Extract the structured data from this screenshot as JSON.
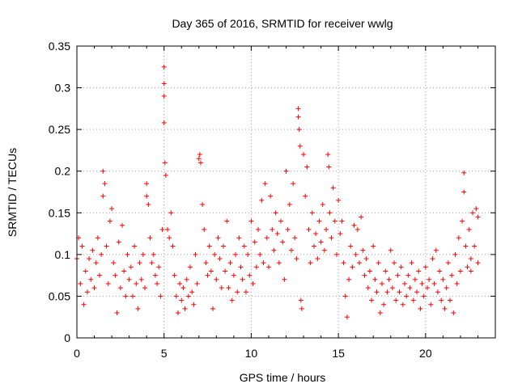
{
  "chart_data": {
    "type": "scatter",
    "title": "Day 365 of 2016, SRMTID for receiver wwlg",
    "xlabel": "GPS time / hours",
    "ylabel": "SRMTID / TECUs",
    "xlim": [
      0,
      24
    ],
    "ylim": [
      0,
      0.35
    ],
    "x_ticks": [
      0,
      5,
      10,
      15,
      20
    ],
    "y_ticks": [
      0,
      0.05,
      0.1,
      0.15,
      0.2,
      0.25,
      0.3,
      0.35
    ],
    "x_tick_labels": [
      "0",
      "5",
      "10",
      "15",
      "20"
    ],
    "y_tick_labels": [
      "0",
      "0.05",
      "0.1",
      "0.15",
      "0.2",
      "0.25",
      "0.3",
      "0.35"
    ],
    "grid": true,
    "marker": "+",
    "colors": {
      "marker": "#ff0000",
      "grid": "#a0a0a0",
      "axis": "#000000"
    },
    "series": [
      {
        "name": "SRMTID",
        "points": [
          [
            0.0,
            0.095
          ],
          [
            0.1,
            0.12
          ],
          [
            0.2,
            0.065
          ],
          [
            0.3,
            0.11
          ],
          [
            0.4,
            0.04
          ],
          [
            0.5,
            0.08
          ],
          [
            0.6,
            0.055
          ],
          [
            0.7,
            0.095
          ],
          [
            0.8,
            0.07
          ],
          [
            0.9,
            0.105
          ],
          [
            1.0,
            0.06
          ],
          [
            1.1,
            0.09
          ],
          [
            1.2,
            0.12
          ],
          [
            1.3,
            0.075
          ],
          [
            1.4,
            0.1
          ],
          [
            1.5,
            0.2
          ],
          [
            1.5,
            0.17
          ],
          [
            1.6,
            0.185
          ],
          [
            1.7,
            0.11
          ],
          [
            1.8,
            0.065
          ],
          [
            1.9,
            0.14
          ],
          [
            2.0,
            0.155
          ],
          [
            2.1,
            0.09
          ],
          [
            2.2,
            0.075
          ],
          [
            2.3,
            0.03
          ],
          [
            2.4,
            0.115
          ],
          [
            2.5,
            0.06
          ],
          [
            2.6,
            0.135
          ],
          [
            2.7,
            0.08
          ],
          [
            2.8,
            0.05
          ],
          [
            2.9,
            0.1
          ],
          [
            3.0,
            0.07
          ],
          [
            3.1,
            0.085
          ],
          [
            3.2,
            0.05
          ],
          [
            3.3,
            0.11
          ],
          [
            3.4,
            0.065
          ],
          [
            3.5,
            0.035
          ],
          [
            3.6,
            0.09
          ],
          [
            3.7,
            0.07
          ],
          [
            3.8,
            0.1
          ],
          [
            3.9,
            0.06
          ],
          [
            4.0,
            0.185
          ],
          [
            4.0,
            0.17
          ],
          [
            4.1,
            0.16
          ],
          [
            4.2,
            0.12
          ],
          [
            4.3,
            0.09
          ],
          [
            4.4,
            0.1
          ],
          [
            4.5,
            0.075
          ],
          [
            4.6,
            0.065
          ],
          [
            4.7,
            0.085
          ],
          [
            4.8,
            0.05
          ],
          [
            4.9,
            0.13
          ],
          [
            5.0,
            0.325
          ],
          [
            5.0,
            0.305
          ],
          [
            5.0,
            0.29
          ],
          [
            5.0,
            0.258
          ],
          [
            5.05,
            0.21
          ],
          [
            5.1,
            0.195
          ],
          [
            5.2,
            0.13
          ],
          [
            5.3,
            0.12
          ],
          [
            5.4,
            0.15
          ],
          [
            5.5,
            0.11
          ],
          [
            5.6,
            0.075
          ],
          [
            5.7,
            0.05
          ],
          [
            5.8,
            0.03
          ],
          [
            5.9,
            0.065
          ],
          [
            6.0,
            0.045
          ],
          [
            6.1,
            0.06
          ],
          [
            6.2,
            0.035
          ],
          [
            6.3,
            0.07
          ],
          [
            6.4,
            0.05
          ],
          [
            6.5,
            0.085
          ],
          [
            6.6,
            0.055
          ],
          [
            6.7,
            0.04
          ],
          [
            6.8,
            0.1
          ],
          [
            6.9,
            0.065
          ],
          [
            7.0,
            0.215
          ],
          [
            7.05,
            0.22
          ],
          [
            7.1,
            0.21
          ],
          [
            7.2,
            0.16
          ],
          [
            7.3,
            0.13
          ],
          [
            7.4,
            0.09
          ],
          [
            7.5,
            0.075
          ],
          [
            7.6,
            0.11
          ],
          [
            7.7,
            0.08
          ],
          [
            7.8,
            0.035
          ],
          [
            7.9,
            0.1
          ],
          [
            8.0,
            0.07
          ],
          [
            8.1,
            0.12
          ],
          [
            8.2,
            0.095
          ],
          [
            8.3,
            0.06
          ],
          [
            8.4,
            0.11
          ],
          [
            8.5,
            0.08
          ],
          [
            8.6,
            0.14
          ],
          [
            8.7,
            0.06
          ],
          [
            8.8,
            0.09
          ],
          [
            8.9,
            0.045
          ],
          [
            9.0,
            0.075
          ],
          [
            9.1,
            0.1
          ],
          [
            9.2,
            0.055
          ],
          [
            9.3,
            0.12
          ],
          [
            9.4,
            0.085
          ],
          [
            9.5,
            0.07
          ],
          [
            9.6,
            0.11
          ],
          [
            9.7,
            0.055
          ],
          [
            9.8,
            0.1
          ],
          [
            9.9,
            0.075
          ],
          [
            10.0,
            0.14
          ],
          [
            10.1,
            0.065
          ],
          [
            10.2,
            0.115
          ],
          [
            10.3,
            0.085
          ],
          [
            10.4,
            0.13
          ],
          [
            10.5,
            0.1
          ],
          [
            10.6,
            0.165
          ],
          [
            10.7,
            0.09
          ],
          [
            10.8,
            0.185
          ],
          [
            10.9,
            0.12
          ],
          [
            11.0,
            0.085
          ],
          [
            11.1,
            0.17
          ],
          [
            11.2,
            0.13
          ],
          [
            11.3,
            0.105
          ],
          [
            11.4,
            0.15
          ],
          [
            11.5,
            0.125
          ],
          [
            11.6,
            0.09
          ],
          [
            11.7,
            0.14
          ],
          [
            11.8,
            0.115
          ],
          [
            11.9,
            0.07
          ],
          [
            12.0,
            0.2
          ],
          [
            12.1,
            0.13
          ],
          [
            12.2,
            0.16
          ],
          [
            12.3,
            0.105
          ],
          [
            12.4,
            0.185
          ],
          [
            12.5,
            0.12
          ],
          [
            12.6,
            0.095
          ],
          [
            12.7,
            0.275
          ],
          [
            12.7,
            0.265
          ],
          [
            12.75,
            0.25
          ],
          [
            12.8,
            0.23
          ],
          [
            12.85,
            0.045
          ],
          [
            12.9,
            0.035
          ],
          [
            13.0,
            0.22
          ],
          [
            13.1,
            0.17
          ],
          [
            13.2,
            0.205
          ],
          [
            13.3,
            0.13
          ],
          [
            13.4,
            0.09
          ],
          [
            13.5,
            0.15
          ],
          [
            13.6,
            0.11
          ],
          [
            13.7,
            0.125
          ],
          [
            13.8,
            0.095
          ],
          [
            13.9,
            0.14
          ],
          [
            14.0,
            0.115
          ],
          [
            14.1,
            0.16
          ],
          [
            14.2,
            0.105
          ],
          [
            14.3,
            0.13
          ],
          [
            14.4,
            0.22
          ],
          [
            14.45,
            0.205
          ],
          [
            14.5,
            0.15
          ],
          [
            14.6,
            0.12
          ],
          [
            14.7,
            0.18
          ],
          [
            14.8,
            0.14
          ],
          [
            14.9,
            0.1
          ],
          [
            15.0,
            0.165
          ],
          [
            15.1,
            0.125
          ],
          [
            15.2,
            0.14
          ],
          [
            15.3,
            0.09
          ],
          [
            15.4,
            0.05
          ],
          [
            15.5,
            0.025
          ],
          [
            15.6,
            0.07
          ],
          [
            15.7,
            0.11
          ],
          [
            15.8,
            0.085
          ],
          [
            15.9,
            0.135
          ],
          [
            16.0,
            0.1
          ],
          [
            16.1,
            0.13
          ],
          [
            16.2,
            0.09
          ],
          [
            16.3,
            0.145
          ],
          [
            16.4,
            0.105
          ],
          [
            16.5,
            0.075
          ],
          [
            16.6,
            0.095
          ],
          [
            16.7,
            0.06
          ],
          [
            16.8,
            0.08
          ],
          [
            16.9,
            0.045
          ],
          [
            17.0,
            0.11
          ],
          [
            17.1,
            0.07
          ],
          [
            17.2,
            0.055
          ],
          [
            17.3,
            0.09
          ],
          [
            17.4,
            0.03
          ],
          [
            17.5,
            0.065
          ],
          [
            17.6,
            0.04
          ],
          [
            17.7,
            0.08
          ],
          [
            17.8,
            0.055
          ],
          [
            17.9,
            0.07
          ],
          [
            18.0,
            0.105
          ],
          [
            18.1,
            0.06
          ],
          [
            18.2,
            0.09
          ],
          [
            18.3,
            0.045
          ],
          [
            18.4,
            0.075
          ],
          [
            18.5,
            0.055
          ],
          [
            18.6,
            0.085
          ],
          [
            18.7,
            0.04
          ],
          [
            18.8,
            0.065
          ],
          [
            18.9,
            0.05
          ],
          [
            19.0,
            0.075
          ],
          [
            19.1,
            0.06
          ],
          [
            19.2,
            0.09
          ],
          [
            19.3,
            0.045
          ],
          [
            19.4,
            0.07
          ],
          [
            19.5,
            0.055
          ],
          [
            19.6,
            0.08
          ],
          [
            19.7,
            0.035
          ],
          [
            19.8,
            0.065
          ],
          [
            19.9,
            0.05
          ],
          [
            20.0,
            0.085
          ],
          [
            20.1,
            0.06
          ],
          [
            20.2,
            0.07
          ],
          [
            20.3,
            0.04
          ],
          [
            20.4,
            0.095
          ],
          [
            20.5,
            0.065
          ],
          [
            20.6,
            0.105
          ],
          [
            20.7,
            0.055
          ],
          [
            20.8,
            0.08
          ],
          [
            20.9,
            0.045
          ],
          [
            21.0,
            0.07
          ],
          [
            21.1,
            0.035
          ],
          [
            21.2,
            0.06
          ],
          [
            21.3,
            0.09
          ],
          [
            21.4,
            0.045
          ],
          [
            21.5,
            0.075
          ],
          [
            21.6,
            0.03
          ],
          [
            21.7,
            0.1
          ],
          [
            21.8,
            0.065
          ],
          [
            21.9,
            0.12
          ],
          [
            22.0,
            0.08
          ],
          [
            22.1,
            0.14
          ],
          [
            22.2,
            0.175
          ],
          [
            22.2,
            0.198
          ],
          [
            22.3,
            0.11
          ],
          [
            22.4,
            0.085
          ],
          [
            22.5,
            0.13
          ],
          [
            22.6,
            0.095
          ],
          [
            22.7,
            0.15
          ],
          [
            22.8,
            0.11
          ],
          [
            22.9,
            0.155
          ],
          [
            23.0,
            0.09
          ],
          [
            23.0,
            0.145
          ],
          [
            22.6,
            0.08
          ]
        ]
      }
    ]
  }
}
